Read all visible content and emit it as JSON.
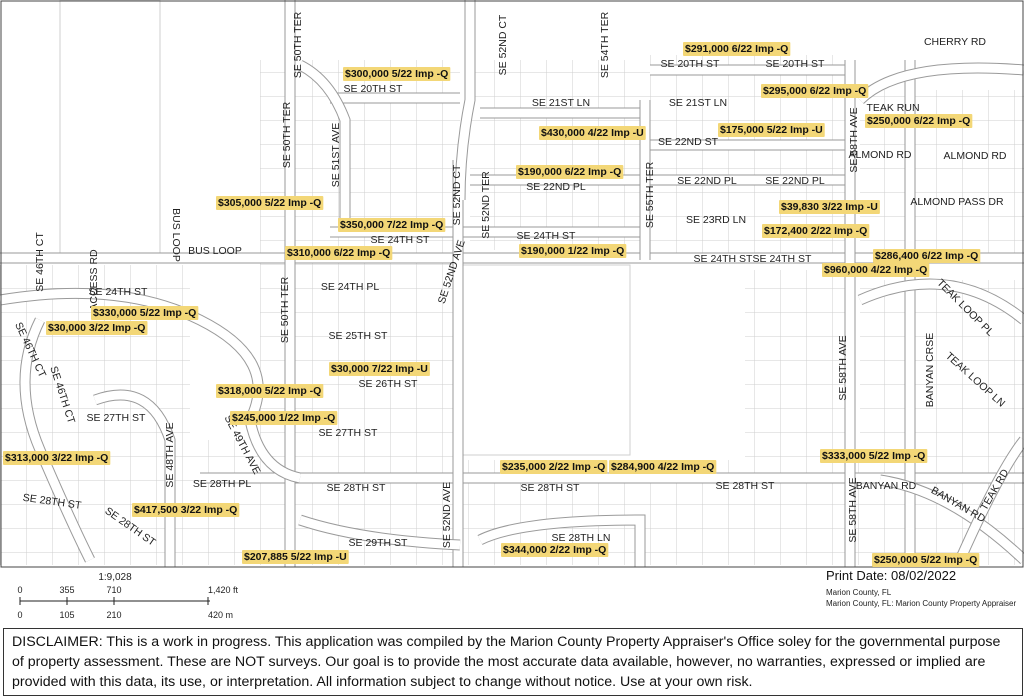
{
  "streets": [
    "CHERRY RD",
    "SE 20TH ST",
    "SE 20TH ST",
    "SE 20TH ST",
    "SE 21ST LN",
    "SE 21ST LN",
    "TEAK RUN",
    "SE 52ND CT",
    "SE 54TH TER",
    "SE 50TH TER",
    "SE 50TH TER",
    "SE 50TH TER",
    "SE 51ST AVE",
    "SE 22ND ST",
    "ALMOND RD",
    "ALMOND RD",
    "SE 58TH AVE",
    "SE 58TH AVE",
    "SE 58TH AVE",
    "SE 52ND CT",
    "SE 52ND TER",
    "SE 55TH TER",
    "SE 22ND PL",
    "SE 22ND PL",
    "SE 22ND PL",
    "ALMOND PASS DR",
    "SE 23RD LN",
    "BUS LOOP",
    "BUS LOOP",
    "SE 24TH ST",
    "SE 24TH ST",
    "SE 24TH ST",
    "SE 24TH ST",
    "SE 24TH ST",
    "SE 52ND AVE",
    "ACCESS RD",
    "SE 46TH CT",
    "SE 46TH CT",
    "SE 46TH CT",
    "SE 24TH PL",
    "TEAK LOOP PL",
    "SE 25TH ST",
    "TEAK LOOP LN",
    "BANYAN CRSE",
    "SE 26TH ST",
    "SE 27TH ST",
    "SE 27TH ST",
    "SE 48TH AVE",
    "SE 49TH AVE",
    "TEAK RD",
    "SE 28TH PL",
    "SE 28TH ST",
    "SE 28TH ST",
    "SE 28TH ST",
    "SE 28TH ST",
    "SE 28TH ST",
    "BANYAN RD",
    "BANYAN RD",
    "SE 52ND AVE",
    "SE 28TH LN",
    "SE 29TH ST"
  ],
  "sales": [
    "$291,000 6/22 Imp -Q",
    "$300,000 5/22 Imp -Q",
    "$295,000 6/22 Imp -Q",
    "$430,000 4/22 Imp -U",
    "$175,000 5/22 Imp -U",
    "$250,000 6/22 Imp -Q",
    "$190,000 6/22 Imp -Q",
    "$305,000 5/22 Imp -Q",
    "$39,830 3/22 Imp -U",
    "$350,000 7/22 Imp -Q",
    "$172,400 2/22 Imp -Q",
    "$310,000 6/22 Imp -Q",
    "$190,000 1/22 Imp -Q",
    "$286,400 6/22 Imp -Q",
    "$960,000 4/22 Imp -Q",
    "$330,000 5/22 Imp -Q",
    "$30,000 3/22 Imp -Q",
    "$30,000 7/22 Imp -U",
    "$318,000 5/22 Imp -Q",
    "$245,000 1/22 Imp -Q",
    "$333,000 5/22 Imp -Q",
    "$313,000 3/22 Imp -Q",
    "$235,000 2/22 Imp -Q",
    "$284,900 4/22 Imp -Q",
    "$417,500 3/22 Imp -Q",
    "$207,885 5/22 Imp -U",
    "$344,000 2/22 Imp -Q",
    "$250,000 5/22 Imp -Q"
  ],
  "scale": {
    "ratio": "1:9,028",
    "feet": [
      "0",
      "355",
      "710",
      "1,420 ft"
    ],
    "meters": [
      "0",
      "105",
      "210",
      "420 m"
    ]
  },
  "print_date": "Print Date: 08/02/2022",
  "credits": [
    "Marion County, FL",
    "Marion County, FL: Marion County Property Appraiser"
  ],
  "disclaimer": "DISCLAIMER: This is a work in progress. This application was compiled by the Marion County Property Appraiser's Office soley for the governmental purpose of property assessment. These are NOT surveys. Our goal is to provide the most accurate data available, however, no warranties, expressed or implied are provided with this data, its use, or interpretation. All information subject to change without notice. Use at your own risk."
}
